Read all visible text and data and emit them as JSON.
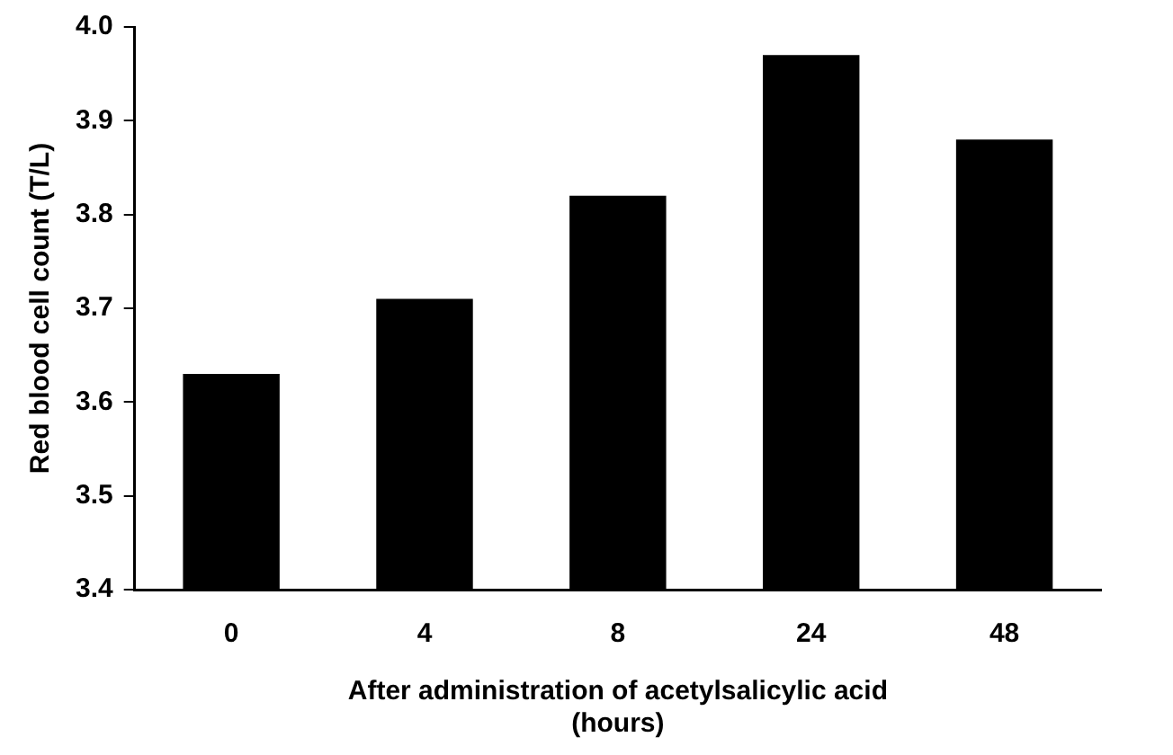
{
  "chart_data": {
    "type": "bar",
    "xlabel": "After administration of acetylsalicylic acid (hours)",
    "ylabel": "Red blood cell count (T/L)",
    "categories": [
      "0",
      "4",
      "8",
      "24",
      "48"
    ],
    "values": [
      3.63,
      3.71,
      3.82,
      3.97,
      3.88
    ],
    "color": "#000000",
    "ylim": [
      3.4,
      4.0
    ],
    "yticks": [
      {
        "value": 3.4,
        "label": "3.4"
      },
      {
        "value": 3.5,
        "label": "3.5"
      },
      {
        "value": 3.6,
        "label": "3.6"
      },
      {
        "value": 3.7,
        "label": "3.7"
      },
      {
        "value": 3.8,
        "label": "3.8"
      },
      {
        "value": 3.9,
        "label": "3.9"
      },
      {
        "value": 4.0,
        "label": "4.0"
      }
    ],
    "grid": false,
    "legend": false
  }
}
